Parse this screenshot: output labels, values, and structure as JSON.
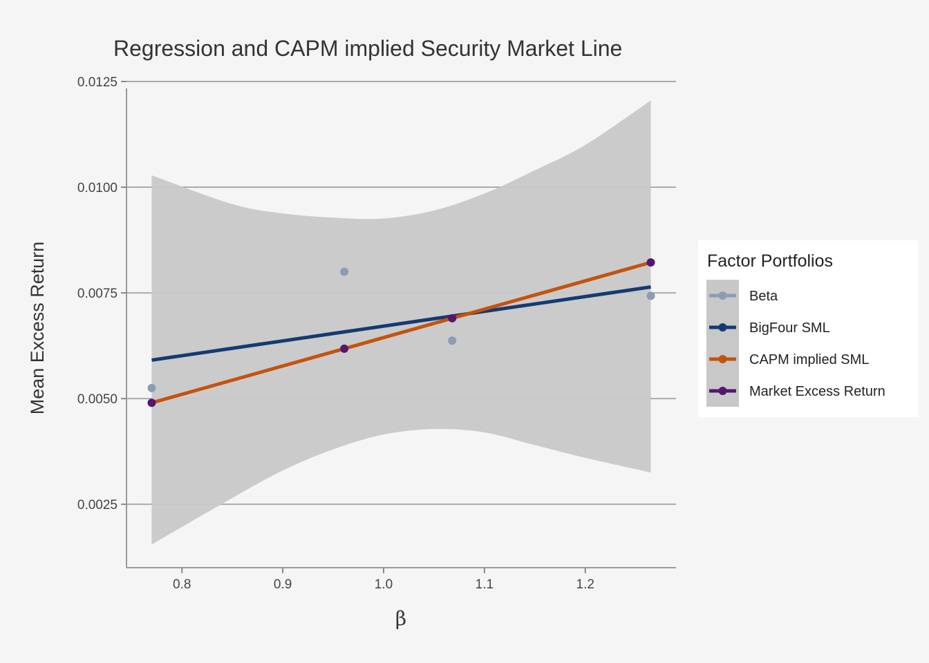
{
  "chart_data": {
    "type": "scatter",
    "title": "Regression and CAPM implied Security Market Line",
    "xlabel": "β",
    "ylabel": "Mean Excess Return",
    "xlim": [
      0.745,
      1.29
    ],
    "ylim": [
      0.001,
      0.0125
    ],
    "x_ticks": [
      0.8,
      0.9,
      1.0,
      1.1,
      1.2
    ],
    "x_tick_labels": [
      "0.8",
      "0.9",
      "1.0",
      "1.1",
      "1.2"
    ],
    "y_ticks": [
      0.0025,
      0.005,
      0.0075,
      0.01,
      0.0125
    ],
    "y_tick_labels": [
      "0.0025",
      "0.0050",
      "0.0075",
      "0.0100",
      "0.0125"
    ],
    "grid": "horizontal major",
    "legend": {
      "title": "Factor Portfolios",
      "position": "right",
      "entries": [
        "Beta",
        "BigFour SML",
        "CAPM implied SML",
        "Market Excess Return"
      ]
    },
    "colors": {
      "Beta": "#8d9bb5",
      "BigFour SML": "#153a73",
      "CAPM implied SML": "#c4530f",
      "Market Excess Return": "#54166e",
      "confidence_band": "#c8c8c8",
      "background": "#f5f5f5",
      "grid": "#aaaaaa"
    },
    "series": [
      {
        "name": "Beta",
        "kind": "points",
        "points": [
          {
            "x": 0.77,
            "y": 0.00525
          },
          {
            "x": 0.961,
            "y": 0.008
          },
          {
            "x": 1.068,
            "y": 0.00637
          },
          {
            "x": 1.265,
            "y": 0.00743
          }
        ]
      },
      {
        "name": "BigFour SML",
        "kind": "line",
        "points": [
          {
            "x": 0.77,
            "y": 0.00591
          },
          {
            "x": 1.265,
            "y": 0.00764
          }
        ]
      },
      {
        "name": "CAPM implied SML",
        "kind": "line",
        "points": [
          {
            "x": 0.77,
            "y": 0.0049
          },
          {
            "x": 0.961,
            "y": 0.00618
          },
          {
            "x": 1.068,
            "y": 0.0069
          },
          {
            "x": 1.265,
            "y": 0.00822
          }
        ]
      },
      {
        "name": "Market Excess Return",
        "kind": "points",
        "points": [
          {
            "x": 0.77,
            "y": 0.0049
          },
          {
            "x": 0.961,
            "y": 0.00618
          },
          {
            "x": 1.068,
            "y": 0.0069
          },
          {
            "x": 1.265,
            "y": 0.00822
          }
        ]
      }
    ],
    "confidence_band": {
      "x": [
        0.77,
        0.85,
        0.9,
        0.95,
        1.0,
        1.05,
        1.1,
        1.15,
        1.2,
        1.265
      ],
      "lower": [
        0.00155,
        0.00265,
        0.0033,
        0.0038,
        0.00415,
        0.00428,
        0.0042,
        0.0039,
        0.0036,
        0.00325
      ],
      "upper": [
        0.01028,
        0.0096,
        0.00938,
        0.00928,
        0.00926,
        0.00945,
        0.00985,
        0.0104,
        0.011,
        0.01205
      ]
    }
  }
}
